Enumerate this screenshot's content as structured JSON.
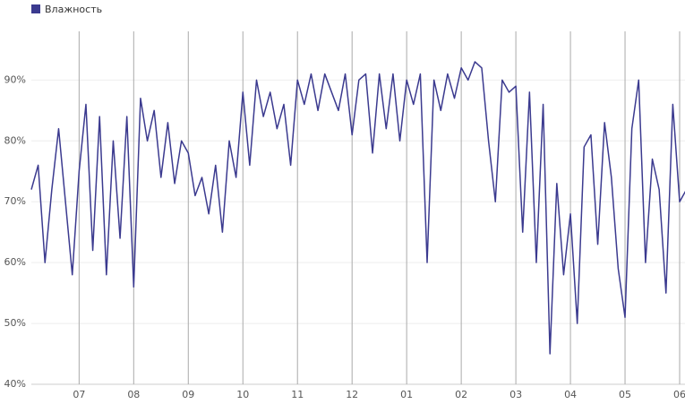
{
  "chart_data": {
    "type": "line",
    "categories": [
      null,
      null,
      null,
      null,
      null,
      null,
      null,
      "07",
      null,
      null,
      null,
      null,
      null,
      null,
      null,
      "08",
      null,
      null,
      null,
      null,
      null,
      null,
      null,
      "09",
      null,
      null,
      null,
      null,
      null,
      null,
      null,
      "10",
      null,
      null,
      null,
      null,
      null,
      null,
      null,
      "11",
      null,
      null,
      null,
      null,
      null,
      null,
      null,
      "12",
      null,
      null,
      null,
      null,
      null,
      null,
      null,
      "01",
      null,
      null,
      null,
      null,
      null,
      null,
      null,
      "02",
      null,
      null,
      null,
      null,
      null,
      null,
      null,
      "03",
      null,
      null,
      null,
      null,
      null,
      null,
      null,
      "04",
      null,
      null,
      null,
      null,
      null,
      null,
      null,
      "05",
      null,
      null,
      null,
      null,
      null,
      null,
      null,
      "06",
      null
    ],
    "series": [
      {
        "name": "Влажность",
        "color": "#3b3a8f",
        "values": [
          72,
          76,
          60,
          72,
          82,
          70,
          58,
          75,
          86,
          62,
          84,
          58,
          80,
          64,
          84,
          56,
          87,
          80,
          85,
          74,
          83,
          73,
          80,
          78,
          71,
          74,
          68,
          76,
          65,
          80,
          74,
          88,
          76,
          90,
          84,
          88,
          82,
          86,
          76,
          90,
          86,
          91,
          85,
          91,
          88,
          85,
          91,
          81,
          90,
          91,
          78,
          91,
          82,
          91,
          80,
          90,
          86,
          91,
          60,
          90,
          85,
          91,
          87,
          92,
          90,
          93,
          92,
          80,
          70,
          90,
          88,
          89,
          65,
          88,
          60,
          86,
          45,
          73,
          58,
          68,
          50,
          79,
          81,
          63,
          83,
          74,
          59,
          51,
          82,
          90,
          60,
          77,
          72,
          55,
          86,
          70,
          72
        ]
      }
    ],
    "ylim": [
      40,
      98
    ],
    "yticks": [
      {
        "value": 40,
        "label": "40%"
      },
      {
        "value": 50,
        "label": "50%"
      },
      {
        "value": 60,
        "label": "60%"
      },
      {
        "value": 70,
        "label": "70%"
      },
      {
        "value": 80,
        "label": "80%"
      },
      {
        "value": 90,
        "label": "90%"
      }
    ],
    "grid": true,
    "legend": "top-left"
  }
}
